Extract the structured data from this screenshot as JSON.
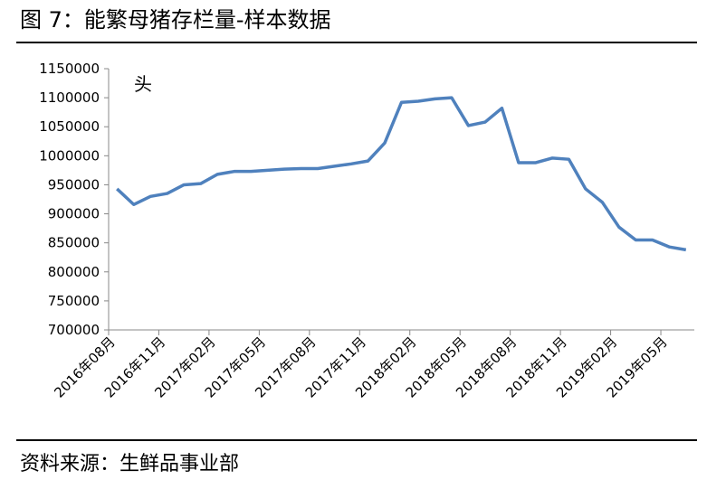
{
  "chart_data": {
    "type": "line",
    "title": "图 7：能繁母猪存栏量-样本数据",
    "y_axis_label": "头",
    "source": "资料来源：生鲜品事业部",
    "categories": [
      "2016年08月",
      null,
      null,
      "2016年11月",
      null,
      null,
      "2017年02月",
      null,
      null,
      "2017年05月",
      null,
      null,
      "2017年08月",
      null,
      null,
      "2017年11月",
      null,
      null,
      "2018年02月",
      null,
      null,
      "2018年05月",
      null,
      null,
      "2018年08月",
      null,
      null,
      "2018年11月",
      null,
      null,
      "2019年02月",
      null,
      null,
      "2019年05月",
      null
    ],
    "series": [
      {
        "name": "能繁母猪存栏量",
        "color": "#4f81bd",
        "values": [
          943000,
          916000,
          930000,
          935000,
          950000,
          952000,
          968000,
          973000,
          973000,
          975000,
          977000,
          978000,
          978000,
          982000,
          986000,
          991000,
          1022000,
          1092000,
          1094000,
          1098000,
          1100000,
          1052000,
          1058000,
          1082000,
          988000,
          988000,
          996000,
          994000,
          943000,
          920000,
          877000,
          855000,
          855000,
          843000,
          838000
        ]
      }
    ],
    "ylim": [
      700000,
      1150000
    ],
    "yticks": [
      700000,
      750000,
      800000,
      850000,
      900000,
      950000,
      1000000,
      1050000,
      1100000,
      1150000
    ]
  }
}
